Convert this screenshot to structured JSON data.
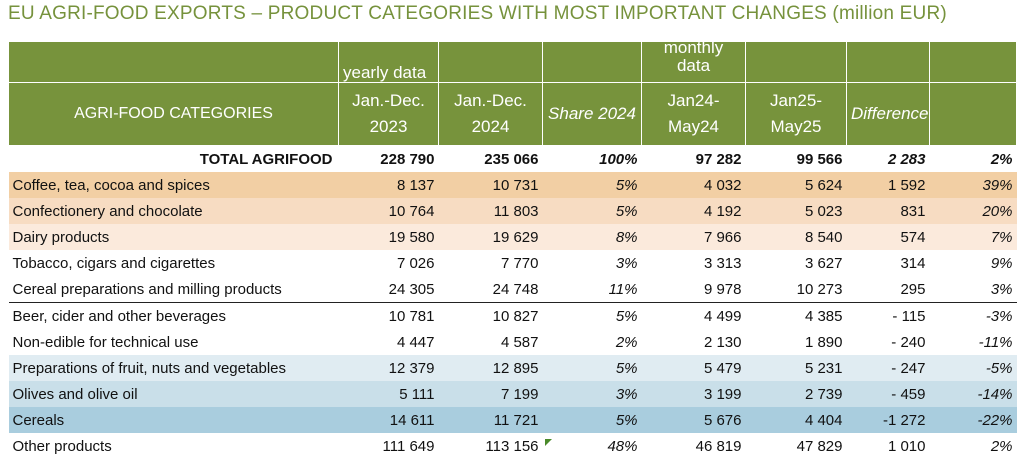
{
  "title": "EU AGRI-FOOD EXPORTS – PRODUCT CATEGORIES WITH MOST IMPORTANT CHANGES (million EUR)",
  "header": {
    "yearly_label": "yearly data",
    "monthly_label": "monthly data",
    "categories_label": "AGRI-FOOD CATEGORIES",
    "col1": "Jan.-Dec. 2023",
    "col2": "Jan.-Dec. 2024",
    "col3": "Share 2024",
    "col4": "Jan24-May24",
    "col5": "Jan25-May25",
    "col6": "Difference",
    "col7": ""
  },
  "total": {
    "label": "TOTAL AGRIFOOD",
    "v2023": "228 790",
    "v2024": "235 066",
    "share": "100%",
    "m24": "97 282",
    "m25": "99 566",
    "diff": "2 283",
    "pct": "2%"
  },
  "rows": [
    {
      "label": "Coffee, tea, cocoa and spices",
      "v2023": "8 137",
      "v2024": "10 731",
      "share": "5%",
      "m24": "4 032",
      "m25": "5 624",
      "diff": "1 592",
      "pct": "39%"
    },
    {
      "label": "Confectionery and chocolate",
      "v2023": "10 764",
      "v2024": "11 803",
      "share": "5%",
      "m24": "4 192",
      "m25": "5 023",
      "diff": "831",
      "pct": "20%"
    },
    {
      "label": "Dairy products",
      "v2023": "19 580",
      "v2024": "19 629",
      "share": "8%",
      "m24": "7 966",
      "m25": "8 540",
      "diff": "574",
      "pct": "7%"
    },
    {
      "label": "Tobacco, cigars and cigarettes",
      "v2023": "7 026",
      "v2024": "7 770",
      "share": "3%",
      "m24": "3 313",
      "m25": "3 627",
      "diff": "314",
      "pct": "9%"
    },
    {
      "label": "Cereal preparations and milling products",
      "v2023": "24 305",
      "v2024": "24 748",
      "share": "11%",
      "m24": "9 978",
      "m25": "10 273",
      "diff": "295",
      "pct": "3%"
    },
    {
      "label": "Beer, cider and other beverages",
      "v2023": "10 781",
      "v2024": "10 827",
      "share": "5%",
      "m24": "4 499",
      "m25": "4 385",
      "diff": "- 115",
      "pct": "-3%"
    },
    {
      "label": "Non-edible for technical use",
      "v2023": "4 447",
      "v2024": "4 587",
      "share": "2%",
      "m24": "2 130",
      "m25": "1 890",
      "diff": "- 240",
      "pct": "-11%"
    },
    {
      "label": "Preparations of fruit, nuts and vegetables",
      "v2023": "12 379",
      "v2024": "12 895",
      "share": "5%",
      "m24": "5 479",
      "m25": "5 231",
      "diff": "- 247",
      "pct": "-5%"
    },
    {
      "label": "Olives and olive oil",
      "v2023": "5 111",
      "v2024": "7 199",
      "share": "3%",
      "m24": "3 199",
      "m25": "2 739",
      "diff": "- 459",
      "pct": "-14%"
    },
    {
      "label": "Cereals",
      "v2023": "14 611",
      "v2024": "11 721",
      "share": "5%",
      "m24": "5 676",
      "m25": "4 404",
      "diff": "-1 272",
      "pct": "-22%"
    },
    {
      "label": "Other products",
      "v2023": "111 649",
      "v2024": "113 156",
      "share": "48%",
      "m24": "46 819",
      "m25": "47 829",
      "diff": "1 010",
      "pct": "2%"
    }
  ],
  "colors": {
    "header_green": "#77933c",
    "title_green": "#76923c",
    "increase_dark": "#f2cfa4",
    "increase_mid": "#f7dcc2",
    "increase_light": "#fbeadc",
    "decrease_light": "#e0ecf2",
    "decrease_mid": "#c9dfe9",
    "decrease_dark": "#a9cdde"
  }
}
